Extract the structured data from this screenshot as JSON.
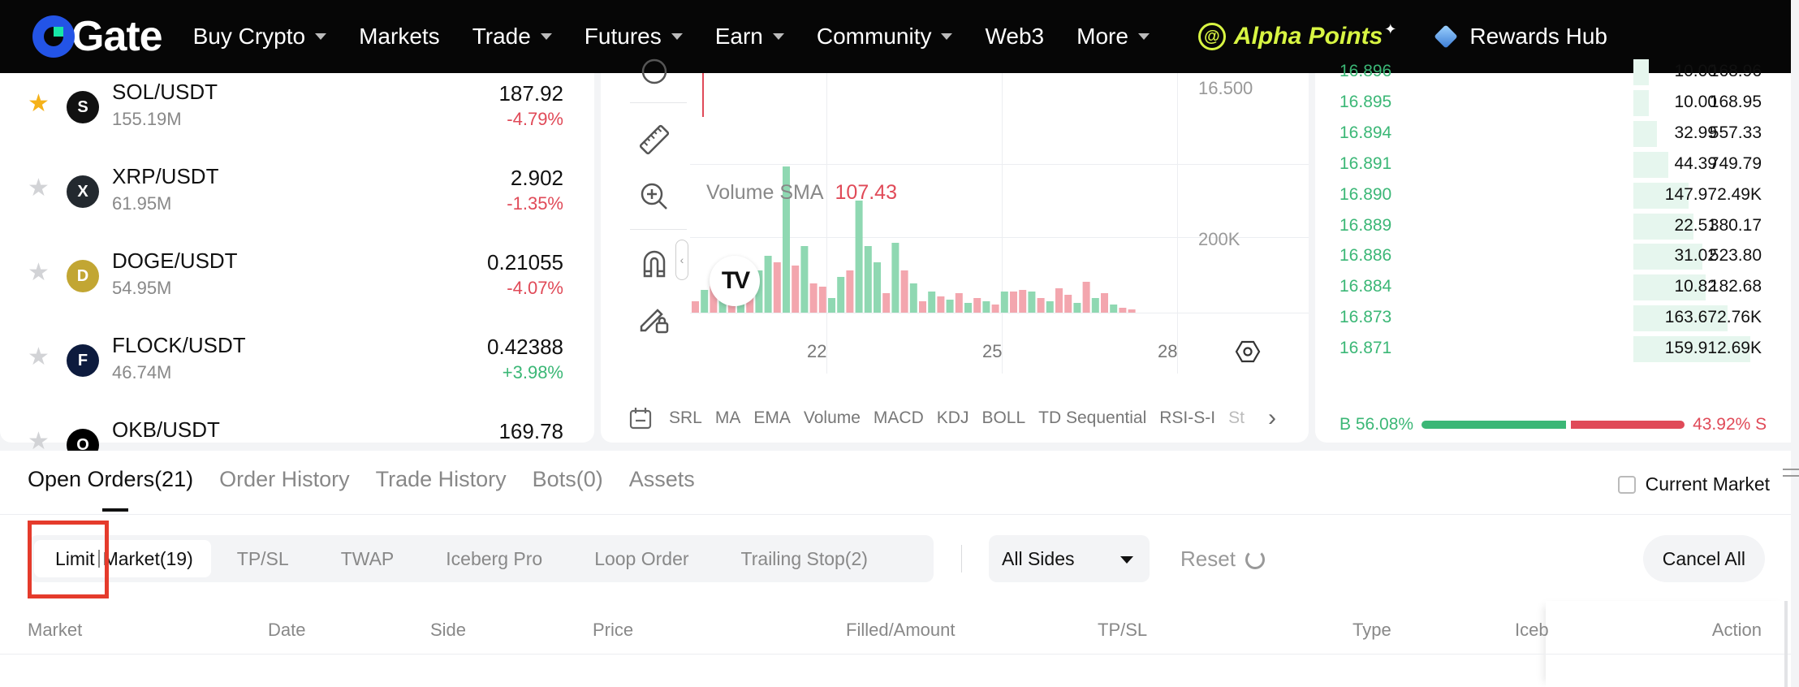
{
  "nav": {
    "logo": "Gate",
    "items": [
      {
        "label": "Buy Crypto",
        "caret": true
      },
      {
        "label": "Markets",
        "caret": false
      },
      {
        "label": "Trade",
        "caret": true
      },
      {
        "label": "Futures",
        "caret": true
      },
      {
        "label": "Earn",
        "caret": true
      },
      {
        "label": "Community",
        "caret": true
      },
      {
        "label": "Web3",
        "caret": false
      },
      {
        "label": "More",
        "caret": true
      }
    ],
    "alpha_label": "Alpha Points",
    "rewards_label": "Rewards Hub"
  },
  "markets": [
    {
      "pair": "SOL/USDT",
      "volume": "155.19M",
      "price": "187.92",
      "change": "-4.79%",
      "fav": true,
      "icon": "sol-coin-icon",
      "color": "#111111"
    },
    {
      "pair": "XRP/USDT",
      "volume": "61.95M",
      "price": "2.902",
      "change": "-1.35%",
      "fav": false,
      "icon": "xrp-coin-icon",
      "color": "#23292f"
    },
    {
      "pair": "DOGE/USDT",
      "volume": "54.95M",
      "price": "0.21055",
      "change": "-4.07%",
      "fav": false,
      "icon": "doge-coin-icon",
      "color": "#c2a633"
    },
    {
      "pair": "FLOCK/USDT",
      "volume": "46.74M",
      "price": "0.42388",
      "change": "+3.98%",
      "fav": false,
      "icon": "flock-coin-icon",
      "color": "#0d1b3e"
    },
    {
      "pair": "OKB/USDT",
      "volume": "",
      "price": "169.78",
      "change": "",
      "fav": false,
      "icon": "okb-coin-icon",
      "color": "#000000"
    }
  ],
  "chart": {
    "price_tick": "16.500",
    "volume_tick": "200K",
    "volume_sma_label": "Volume SMA",
    "volume_sma_value": "107.43",
    "x_ticks": [
      "22",
      "25",
      "28"
    ],
    "indicators": [
      "SRL",
      "MA",
      "EMA",
      "Volume",
      "MACD",
      "KDJ",
      "BOLL",
      "TD Sequential",
      "RSI-S-I",
      "St"
    ],
    "colors": {
      "up": "#8fd8b2",
      "down": "#f3a6ae"
    }
  },
  "orderbook": {
    "rows": [
      {
        "price": "16.896",
        "amount": "10.00",
        "total": "168.96",
        "depth": 0.1
      },
      {
        "price": "16.895",
        "amount": "10.00",
        "total": "168.95",
        "depth": 0.1
      },
      {
        "price": "16.894",
        "amount": "32.99",
        "total": "557.33",
        "depth": 0.15
      },
      {
        "price": "16.891",
        "amount": "44.39",
        "total": "749.79",
        "depth": 0.22
      },
      {
        "price": "16.890",
        "amount": "147.97",
        "total": "2.49K",
        "depth": 0.35
      },
      {
        "price": "16.889",
        "amount": "22.51",
        "total": "380.17",
        "depth": 0.38
      },
      {
        "price": "16.886",
        "amount": "31.02",
        "total": "523.80",
        "depth": 0.44
      },
      {
        "price": "16.884",
        "amount": "10.82",
        "total": "182.68",
        "depth": 0.46
      },
      {
        "price": "16.873",
        "amount": "163.67",
        "total": "2.76K",
        "depth": 0.6
      },
      {
        "price": "16.871",
        "amount": "159.91",
        "total": "2.69K",
        "depth": 0.74
      }
    ],
    "buy_ratio_label": "B 56.08%",
    "sell_ratio_label": "43.92% S",
    "buy_ratio": 56.08,
    "sell_ratio": 43.92
  },
  "orders": {
    "tabs": [
      "Open Orders(21)",
      "Order History",
      "Trade History",
      "Bots(0)",
      "Assets"
    ],
    "current_market_label": "Current Market",
    "subtab_limit": "Limit",
    "subtab_market": "Market(19)",
    "subtabs": [
      "TP/SL",
      "TWAP",
      "Iceberg Pro",
      "Loop Order",
      "Trailing Stop(2)"
    ],
    "sides_label": "All Sides",
    "reset_label": "Reset",
    "cancel_all_label": "Cancel All",
    "columns": [
      "Market",
      "Date",
      "Side",
      "Price",
      "Filled/Amount",
      "TP/SL",
      "Type",
      "Iceb",
      "Action"
    ]
  }
}
